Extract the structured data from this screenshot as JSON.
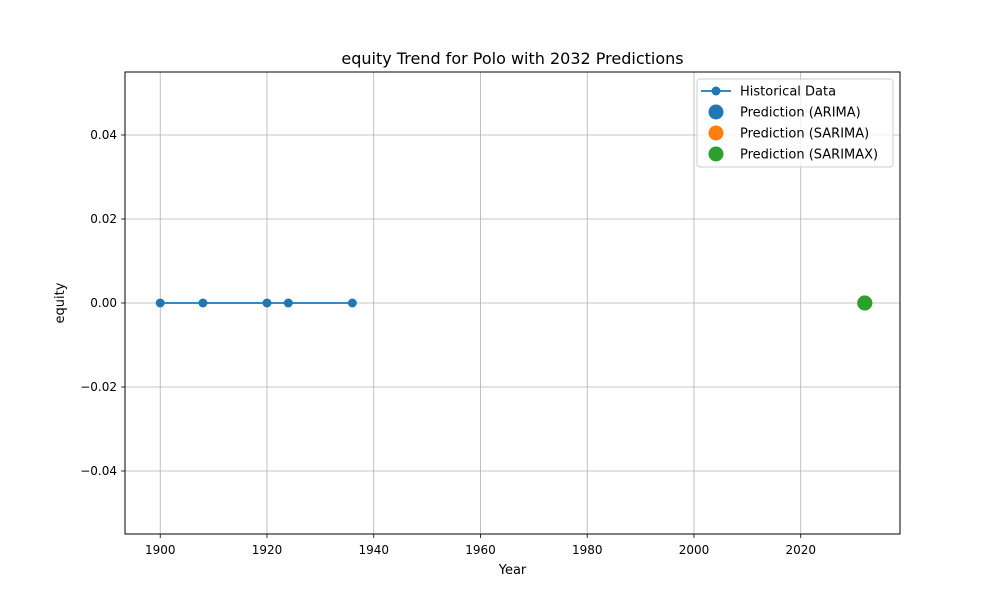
{
  "chart_data": {
    "type": "line",
    "title": "equity Trend for Polo with 2032 Predictions",
    "xlabel": "Year",
    "ylabel": "equity",
    "xlim": [
      1893.4,
      2038.6
    ],
    "ylim": [
      -0.055,
      0.055
    ],
    "xticks": [
      1900,
      1920,
      1940,
      1960,
      1980,
      2000,
      2020
    ],
    "xtick_labels": [
      "1900",
      "1920",
      "1940",
      "1960",
      "1980",
      "2000",
      "2020"
    ],
    "yticks": [
      0.04,
      0.02,
      0.0,
      -0.02,
      -0.04
    ],
    "ytick_labels": [
      "0.04",
      "0.02",
      "0.00",
      "−0.02",
      "−0.04"
    ],
    "grid": true,
    "legend_position": "upper-right",
    "series": [
      {
        "name": "Historical Data",
        "kind": "line-marker",
        "color": "#1f77b4",
        "x": [
          1900,
          1908,
          1920,
          1924,
          1936
        ],
        "y": [
          0,
          0,
          0,
          0,
          0
        ]
      },
      {
        "name": "Prediction (ARIMA)",
        "kind": "scatter",
        "color": "#1f77b4",
        "x": [
          2032
        ],
        "y": [
          0
        ]
      },
      {
        "name": "Prediction (SARIMA)",
        "kind": "scatter",
        "color": "#ff7f0e",
        "x": [
          2032
        ],
        "y": [
          0
        ]
      },
      {
        "name": "Prediction (SARIMAX)",
        "kind": "scatter",
        "color": "#2ca02c",
        "x": [
          2032
        ],
        "y": [
          0
        ]
      }
    ]
  }
}
